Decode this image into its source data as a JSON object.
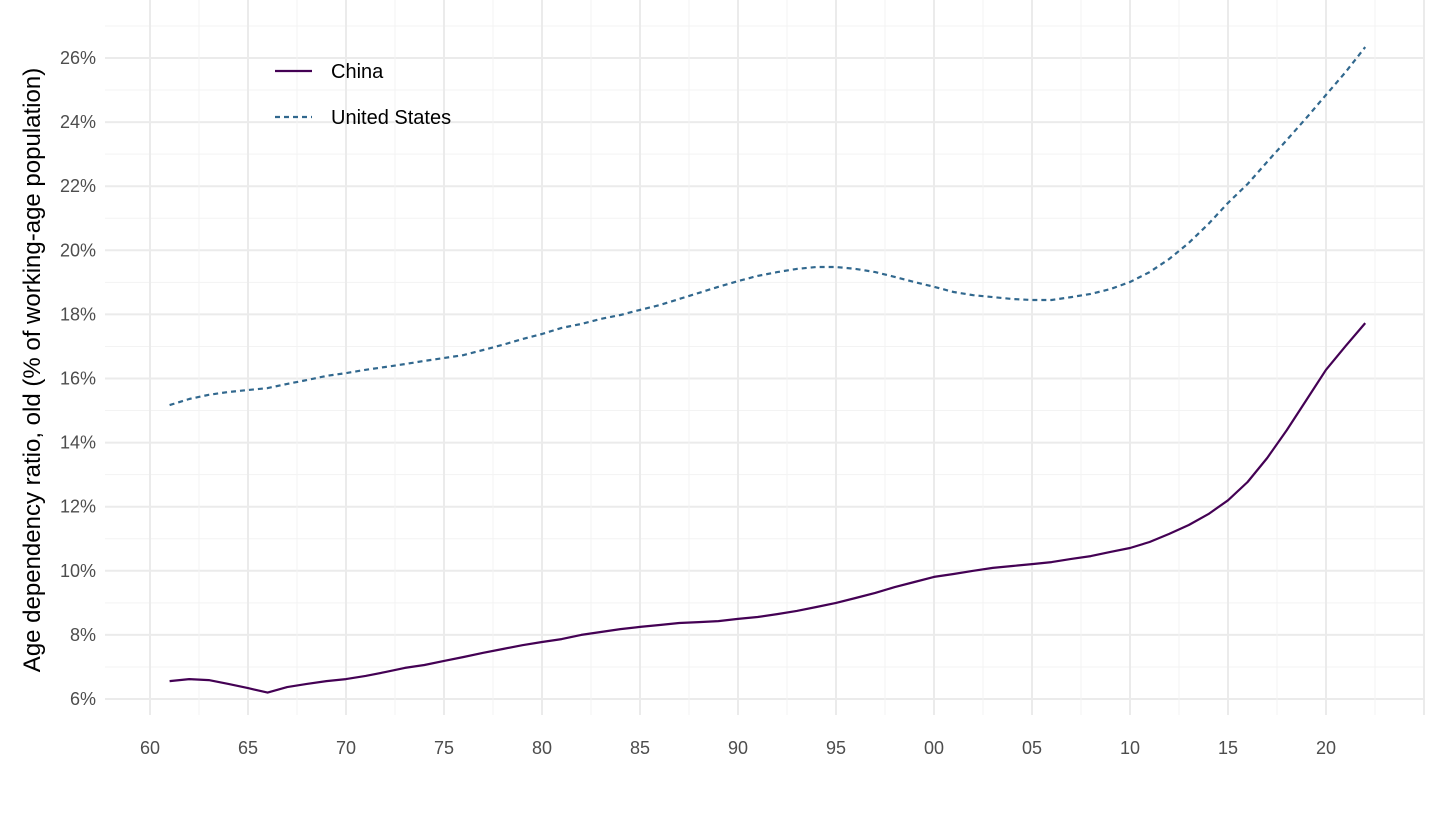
{
  "chart_data": {
    "type": "line",
    "title": "",
    "xlabel": "",
    "ylabel": "Age dependency ratio, old (% of working-age population)",
    "xlim": [
      1958,
      2025
    ],
    "ylim": [
      5.5,
      26.8
    ],
    "grid": true,
    "legend_position": "top-left",
    "x_ticks": [
      1960,
      1965,
      1970,
      1975,
      1980,
      1985,
      1990,
      1995,
      2000,
      2005,
      2010,
      2015,
      2020
    ],
    "x_tick_labels": [
      "60",
      "65",
      "70",
      "75",
      "80",
      "85",
      "90",
      "95",
      "00",
      "05",
      "10",
      "15",
      "20"
    ],
    "y_ticks": [
      6,
      8,
      10,
      12,
      14,
      16,
      18,
      20,
      22,
      24,
      26
    ],
    "y_tick_labels": [
      "6%",
      "8%",
      "10%",
      "12%",
      "14%",
      "16%",
      "18%",
      "20%",
      "22%",
      "24%",
      "26%"
    ],
    "x": [
      1961,
      1962,
      1963,
      1964,
      1965,
      1966,
      1967,
      1968,
      1969,
      1970,
      1971,
      1972,
      1973,
      1974,
      1975,
      1976,
      1977,
      1978,
      1979,
      1980,
      1981,
      1982,
      1983,
      1984,
      1985,
      1986,
      1987,
      1988,
      1989,
      1990,
      1991,
      1992,
      1993,
      1994,
      1995,
      1996,
      1997,
      1998,
      1999,
      2000,
      2001,
      2002,
      2003,
      2004,
      2005,
      2006,
      2007,
      2008,
      2009,
      2010,
      2011,
      2012,
      2013,
      2014,
      2015,
      2016,
      2017,
      2018,
      2019,
      2020,
      2021,
      2022
    ],
    "series": [
      {
        "name": "China",
        "color": "#440154",
        "dash": "solid",
        "values": [
          6.56,
          6.62,
          6.59,
          6.47,
          6.34,
          6.2,
          6.37,
          6.47,
          6.56,
          6.62,
          6.72,
          6.84,
          6.97,
          7.06,
          7.19,
          7.31,
          7.44,
          7.56,
          7.68,
          7.78,
          7.87,
          8.0,
          8.09,
          8.18,
          8.25,
          8.31,
          8.37,
          8.4,
          8.43,
          8.5,
          8.56,
          8.65,
          8.75,
          8.87,
          9.0,
          9.15,
          9.31,
          9.49,
          9.65,
          9.81,
          9.9,
          10.0,
          10.09,
          10.15,
          10.21,
          10.27,
          10.37,
          10.46,
          10.59,
          10.71,
          10.9,
          11.15,
          11.43,
          11.77,
          12.2,
          12.77,
          13.52,
          14.39,
          15.33,
          16.27,
          17.01,
          17.73
        ]
      },
      {
        "name": "United States",
        "color": "#31688E",
        "dash": "dashed",
        "values": [
          15.17,
          15.36,
          15.49,
          15.58,
          15.64,
          15.7,
          15.83,
          15.95,
          16.08,
          16.17,
          16.27,
          16.36,
          16.45,
          16.55,
          16.64,
          16.73,
          16.89,
          17.05,
          17.23,
          17.39,
          17.58,
          17.7,
          17.86,
          17.98,
          18.14,
          18.29,
          18.48,
          18.67,
          18.86,
          19.04,
          19.2,
          19.32,
          19.42,
          19.48,
          19.48,
          19.42,
          19.32,
          19.17,
          19.01,
          18.86,
          18.7,
          18.6,
          18.54,
          18.48,
          18.45,
          18.45,
          18.54,
          18.64,
          18.79,
          19.01,
          19.32,
          19.73,
          20.23,
          20.82,
          21.48,
          22.07,
          22.76,
          23.44,
          24.13,
          24.85,
          25.56,
          26.34
        ]
      }
    ]
  }
}
